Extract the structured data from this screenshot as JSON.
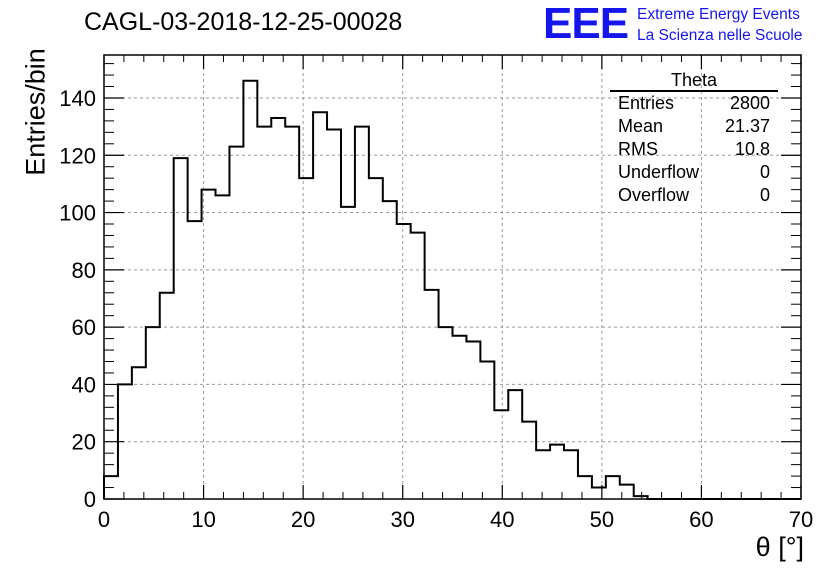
{
  "header": {
    "run_title": "CAGL-03-2018-12-25-00028",
    "logo": "EEE",
    "logo_line1": "Extreme Energy Events",
    "logo_line2": "La Scienza nelle Scuole",
    "brand_color": "#1515ee"
  },
  "stats_box": {
    "title": "Theta",
    "rows": [
      {
        "label": "Entries",
        "value": "2800"
      },
      {
        "label": "Mean",
        "value": "21.37"
      },
      {
        "label": "RMS",
        "value": "10.8"
      },
      {
        "label": "Underflow",
        "value": "0"
      },
      {
        "label": "Overflow",
        "value": "0"
      }
    ]
  },
  "chart_data": {
    "type": "bar",
    "title": "CAGL-03-2018-12-25-00028",
    "xlabel": "θ [°]",
    "ylabel": "Entries/bin",
    "xlim": [
      0,
      70
    ],
    "ylim": [
      0,
      155
    ],
    "grid": true,
    "bin_width": 1.4,
    "bin_edges_start": 0,
    "values": [
      8,
      40,
      46,
      60,
      72,
      119,
      97,
      108,
      106,
      123,
      146,
      130,
      133,
      130,
      112,
      135,
      129,
      102,
      130,
      112,
      104,
      96,
      93,
      73,
      60,
      57,
      55,
      48,
      31,
      38,
      27,
      17,
      19,
      17,
      8,
      4,
      8,
      5,
      1,
      0,
      0,
      0,
      0,
      0,
      0,
      0,
      0,
      0,
      0,
      0
    ],
    "x_ticks": [
      "0",
      "10",
      "20",
      "30",
      "40",
      "50",
      "60",
      "70"
    ],
    "y_ticks": [
      "0",
      "20",
      "40",
      "60",
      "80",
      "100",
      "120",
      "140"
    ]
  }
}
